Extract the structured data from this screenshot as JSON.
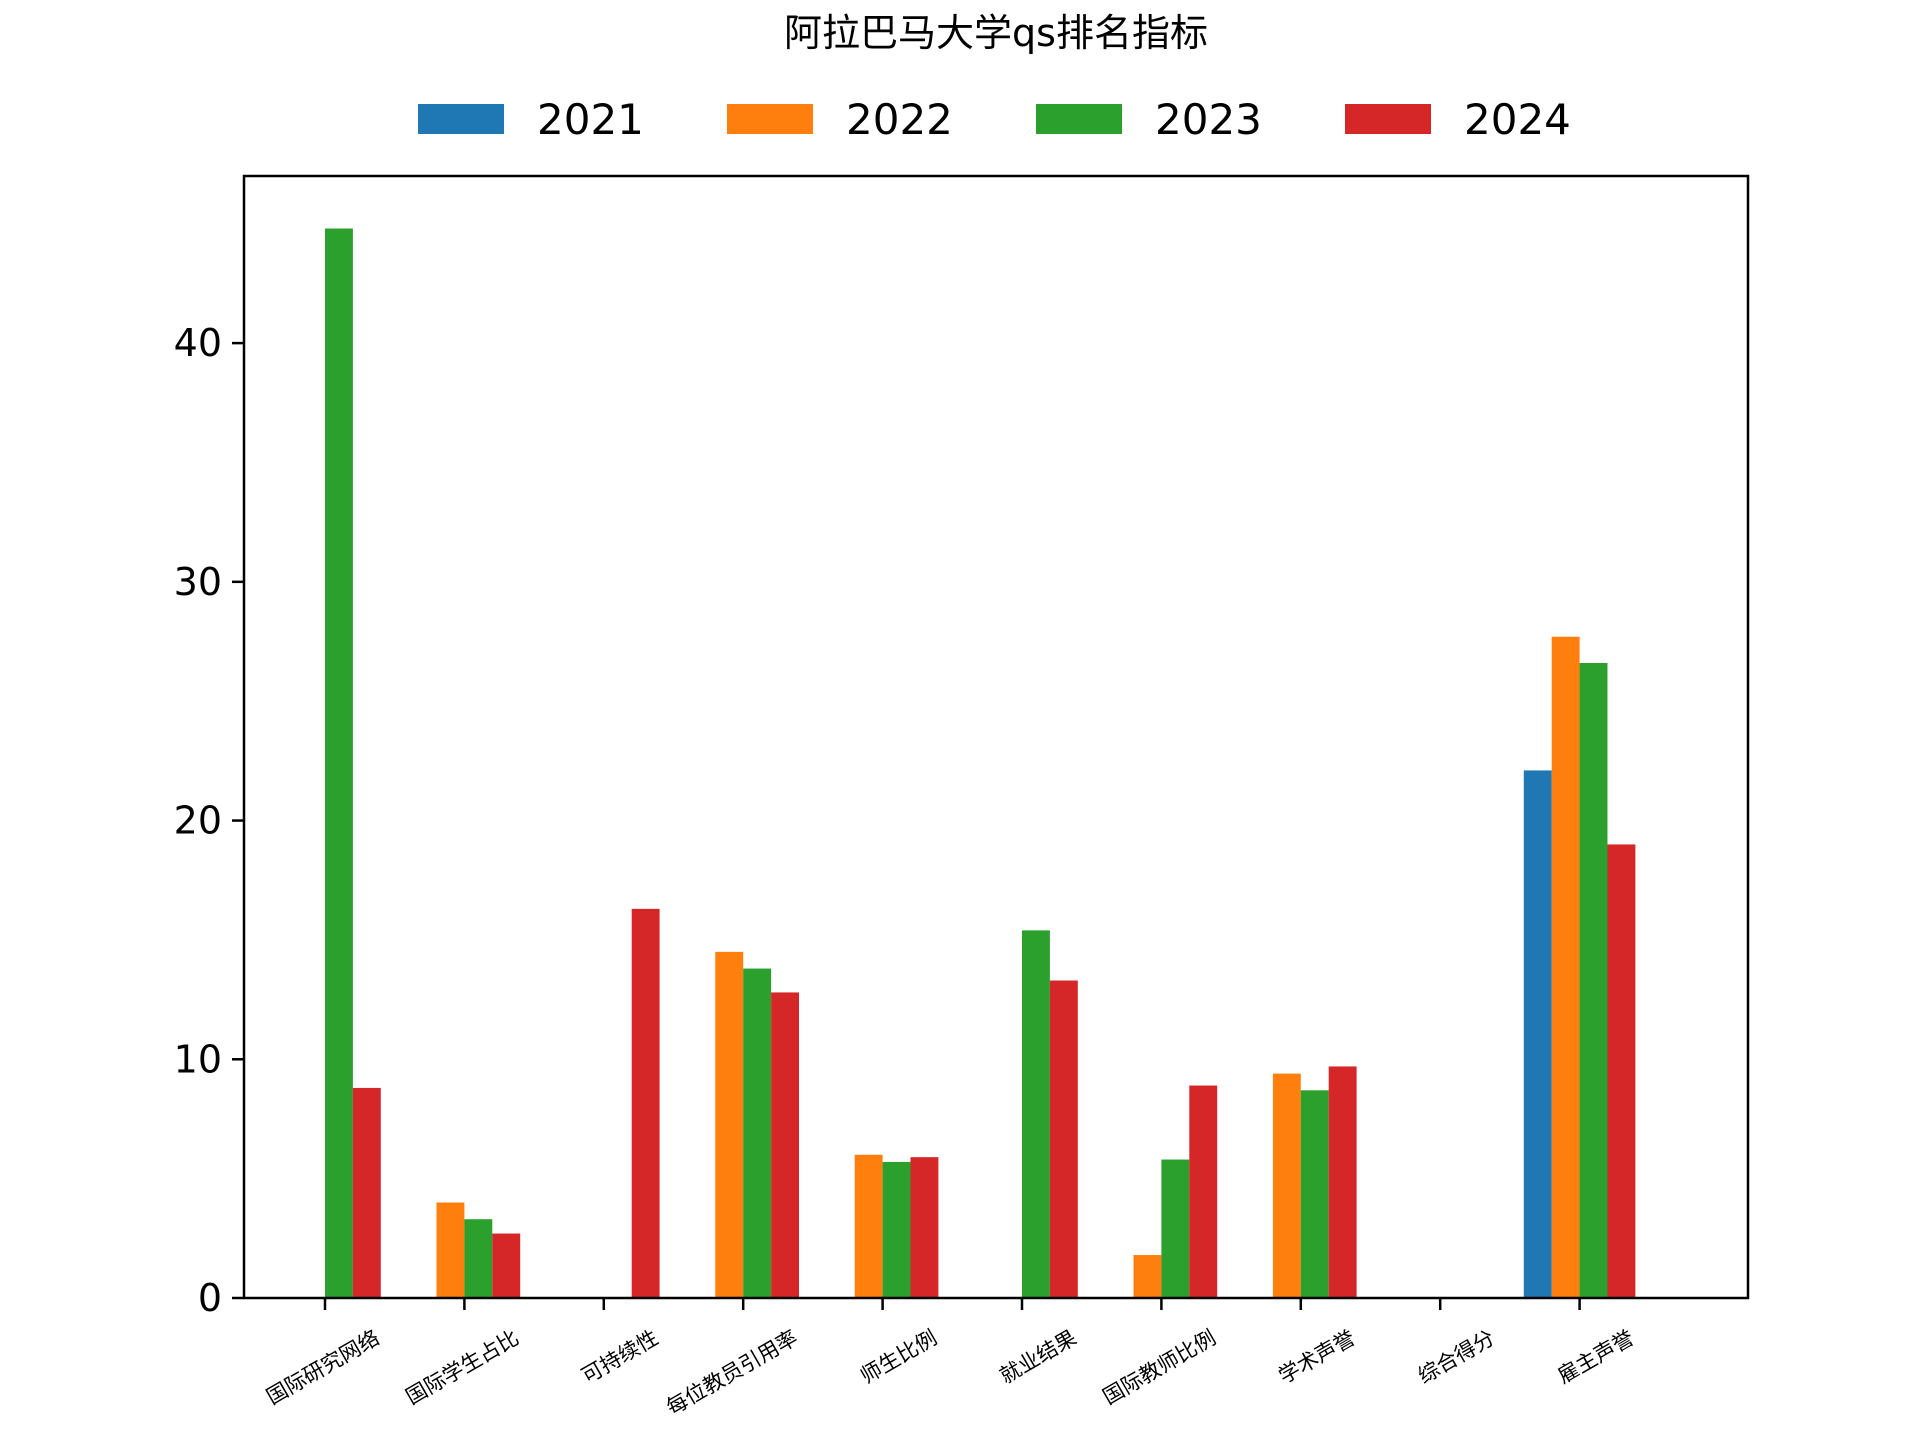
{
  "chart_data": {
    "type": "bar",
    "title": "阿拉巴马大学qs排名指标",
    "xlabel": "",
    "ylabel": "",
    "ylim": [
      0,
      47
    ],
    "yticks": [
      0,
      10,
      20,
      30,
      40
    ],
    "grid": false,
    "legend_position": "top-center",
    "categories": [
      "国际研究网络",
      "国际学生占比",
      "可持续性",
      "每位教员引用率",
      "师生比例",
      "就业结果",
      "国际教师比例",
      "学术声誉",
      "综合得分",
      "雇主声誉"
    ],
    "series": [
      {
        "name": "2021",
        "color": "#1f77b4",
        "values": [
          null,
          null,
          null,
          null,
          null,
          null,
          null,
          null,
          null,
          22.1
        ]
      },
      {
        "name": "2022",
        "color": "#ff7f0e",
        "values": [
          null,
          4.0,
          null,
          14.5,
          6.0,
          null,
          1.8,
          9.4,
          null,
          27.7
        ]
      },
      {
        "name": "2023",
        "color": "#2ca02c",
        "values": [
          44.8,
          3.3,
          null,
          13.8,
          5.7,
          15.4,
          5.8,
          8.7,
          null,
          26.6
        ]
      },
      {
        "name": "2024",
        "color": "#d62728",
        "values": [
          8.8,
          2.7,
          16.3,
          12.8,
          5.9,
          13.3,
          8.9,
          9.7,
          null,
          19.0
        ]
      }
    ]
  }
}
